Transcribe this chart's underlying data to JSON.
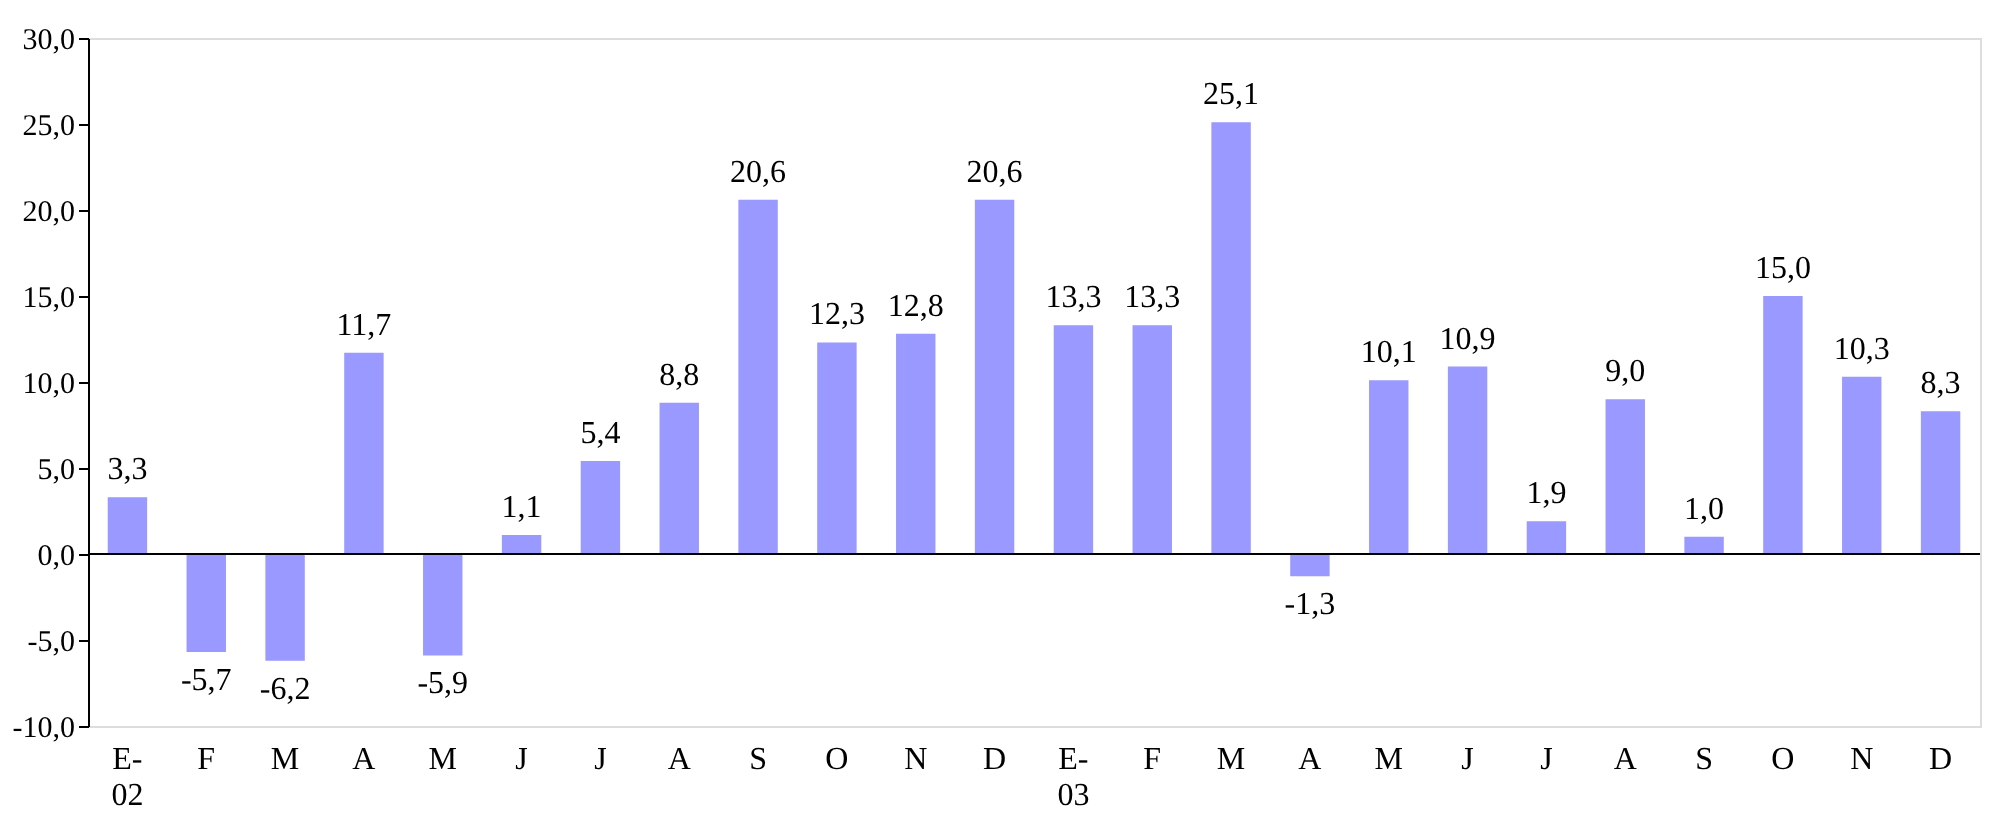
{
  "chart_data": {
    "type": "bar",
    "categories": [
      "E-02",
      "F",
      "M",
      "A",
      "M",
      "J",
      "J",
      "A",
      "S",
      "O",
      "N",
      "D",
      "E-03",
      "F",
      "M",
      "A",
      "M",
      "J",
      "J",
      "A",
      "S",
      "O",
      "N",
      "D"
    ],
    "values": [
      3.3,
      -5.7,
      -6.2,
      11.7,
      -5.9,
      1.1,
      5.4,
      8.8,
      20.6,
      12.3,
      12.8,
      20.6,
      13.3,
      13.3,
      25.1,
      -1.3,
      10.1,
      10.9,
      1.9,
      9.0,
      1.0,
      15.0,
      10.3,
      8.3
    ],
    "value_labels": [
      "3,3",
      "-5,7",
      "-6,2",
      "11,7",
      "-5,9",
      "1,1",
      "5,4",
      "8,8",
      "20,6",
      "12,3",
      "12,8",
      "20,6",
      "13,3",
      "13,3",
      "25,1",
      "-1,3",
      "10,1",
      "10,9",
      "1,9",
      "9,0",
      "1,0",
      "15,0",
      "10,3",
      "8,3"
    ],
    "color": "#9999ff",
    "ylim": [
      -10,
      30
    ],
    "yticks": [
      {
        "value": -10,
        "label": "-10,0"
      },
      {
        "value": -5,
        "label": "-5,0"
      },
      {
        "value": 0,
        "label": "0,0"
      },
      {
        "value": 5,
        "label": "5,0"
      },
      {
        "value": 10,
        "label": "10,0"
      },
      {
        "value": 15,
        "label": "15,0"
      },
      {
        "value": 20,
        "label": "20,0"
      },
      {
        "value": 25,
        "label": "25,0"
      },
      {
        "value": 30,
        "label": "30,0"
      }
    ],
    "ref_lines": [
      {
        "axis": "y",
        "value": 0
      }
    ],
    "grid": false
  }
}
